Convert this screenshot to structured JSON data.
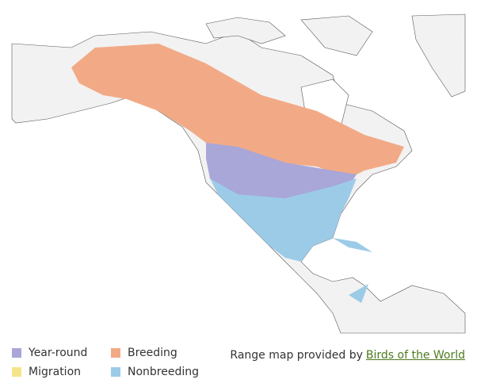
{
  "legend": [
    {
      "label": "Year-round",
      "color": "#a9a6d8"
    },
    {
      "label": "Migration",
      "color": "#f3e58a"
    },
    {
      "label": "Breeding",
      "color": "#f2aa86"
    },
    {
      "label": "Nonbreeding",
      "color": "#9ccbe8"
    }
  ],
  "attribution": {
    "text": "Range map provided by",
    "link": "Birds of the World"
  }
}
